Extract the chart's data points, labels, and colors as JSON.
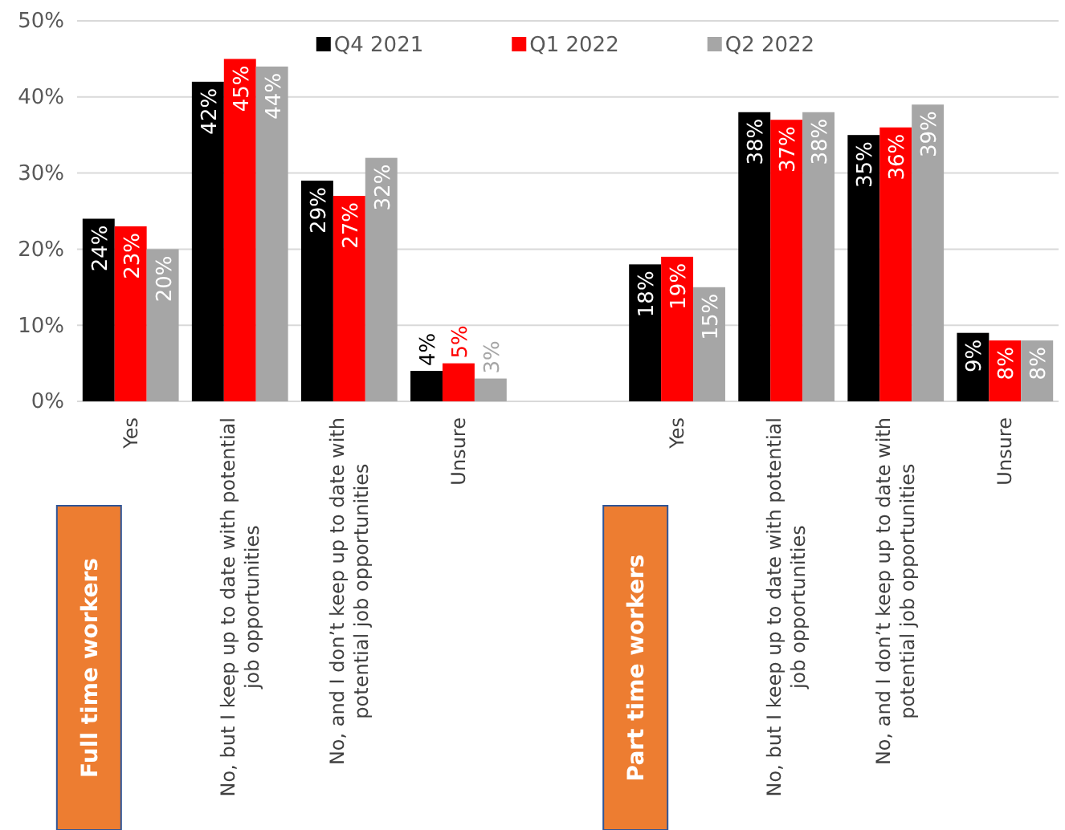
{
  "chart_data": {
    "type": "bar",
    "categories": [
      "Yes",
      "No, but I keep up to date with potential job opportunities",
      "No, and I don’t keep up to date with potential job opportunities",
      "Unsure",
      null,
      "Yes",
      "No, but I keep up to date with potential job opportunities",
      "No, and I don’t keep up to date with potential job opportunities",
      "Unsure"
    ],
    "series": [
      {
        "name": "Q4 2021",
        "color": "#000000",
        "values": [
          24,
          42,
          29,
          4,
          null,
          18,
          38,
          35,
          9
        ],
        "value_labels": [
          "24%",
          "42%",
          "29%",
          "4%",
          null,
          "18%",
          "38%",
          "35%",
          "9%"
        ]
      },
      {
        "name": "Q1 2022",
        "color": "#ff0000",
        "values": [
          23,
          45,
          27,
          5,
          null,
          19,
          37,
          36,
          8
        ],
        "value_labels": [
          "23%",
          "45%",
          "27%",
          "5%",
          null,
          "19%",
          "37%",
          "36%",
          "8%"
        ]
      },
      {
        "name": "Q2 2022",
        "color": "#a6a6a6",
        "values": [
          20,
          44,
          32,
          3,
          null,
          15,
          38,
          39,
          8
        ],
        "value_labels": [
          "20%",
          "44%",
          "32%",
          "3%",
          null,
          "15%",
          "38%",
          "39%",
          "8%"
        ]
      }
    ],
    "ylim": [
      0,
      50
    ],
    "yticks": [
      {
        "value": 0,
        "label": "0%"
      },
      {
        "value": 10,
        "label": "10%"
      },
      {
        "value": 20,
        "label": "20%"
      },
      {
        "value": 30,
        "label": "30%"
      },
      {
        "value": 40,
        "label": "40%"
      },
      {
        "value": 50,
        "label": "50%"
      }
    ],
    "grid": "y",
    "legend": "top",
    "annotations": [
      "Full time workers",
      "Part time workers"
    ]
  }
}
